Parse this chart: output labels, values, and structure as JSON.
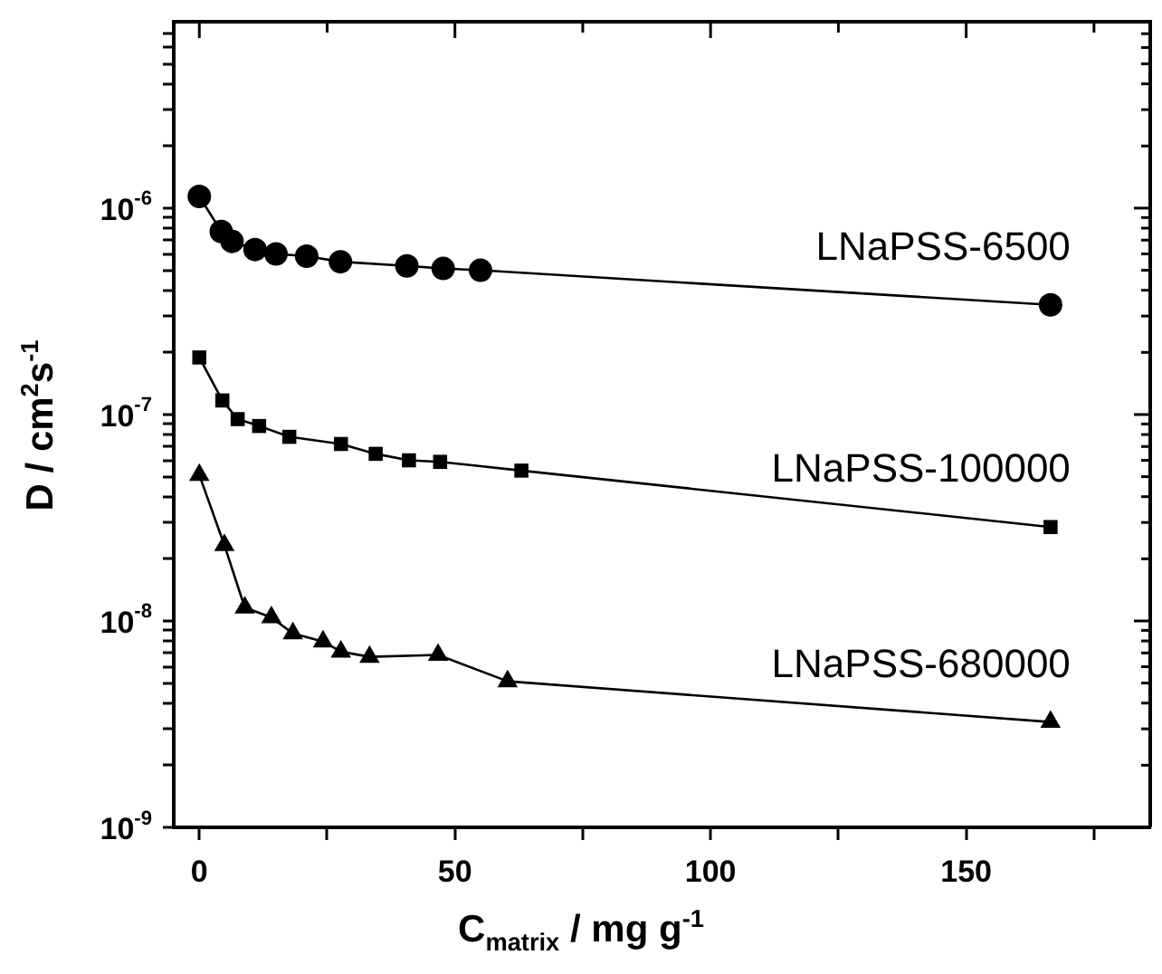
{
  "chart_data": {
    "type": "line",
    "xlabel": "C$_{matrix}$ / mg g$^{-1}$",
    "ylabel": "D / cm$^{2}$s$^{-1}$",
    "log": "y",
    "grid": false,
    "legend": "right",
    "line_style": "solid",
    "xlim": [
      -5,
      186
    ],
    "xticks": [
      0,
      {
        "value": 25,
        "label": null
      },
      50,
      {
        "value": 75,
        "label": null
      },
      100,
      {
        "value": 125,
        "label": null
      },
      150,
      {
        "value": 175,
        "label": null
      }
    ],
    "ylim": [
      1e-09,
      8e-06
    ],
    "yticks": [
      {
        "value": 1e-09,
        "label": "10$^{-9}$"
      },
      {
        "value": 2e-09,
        "label": null
      },
      {
        "value": 3e-09,
        "label": null
      },
      {
        "value": 4e-09,
        "label": null
      },
      {
        "value": 5e-09,
        "label": null
      },
      {
        "value": 6e-09,
        "label": null
      },
      {
        "value": 7e-09,
        "label": null
      },
      {
        "value": 8e-09,
        "label": null
      },
      {
        "value": 9e-09,
        "label": null
      },
      {
        "value": 1e-08,
        "label": "10$^{-8}$"
      },
      {
        "value": 2e-08,
        "label": null
      },
      {
        "value": 3e-08,
        "label": null
      },
      {
        "value": 4e-08,
        "label": null
      },
      {
        "value": 5e-08,
        "label": null
      },
      {
        "value": 6e-08,
        "label": null
      },
      {
        "value": 7e-08,
        "label": null
      },
      {
        "value": 8e-08,
        "label": null
      },
      {
        "value": 9e-08,
        "label": null
      },
      {
        "value": 1e-07,
        "label": "10$^{-7}$"
      },
      {
        "value": 2e-07,
        "label": null
      },
      {
        "value": 3e-07,
        "label": null
      },
      {
        "value": 4e-07,
        "label": null
      },
      {
        "value": 5e-07,
        "label": null
      },
      {
        "value": 6e-07,
        "label": null
      },
      {
        "value": 7e-07,
        "label": null
      },
      {
        "value": 8e-07,
        "label": null
      },
      {
        "value": 9e-07,
        "label": null
      },
      {
        "value": 1e-06,
        "label": "10$^{-6}$"
      },
      {
        "value": 2e-06,
        "label": null
      },
      {
        "value": 3e-06,
        "label": null
      },
      {
        "value": 4e-06,
        "label": null
      },
      {
        "value": 5e-06,
        "label": null
      },
      {
        "value": 6e-06,
        "label": null
      },
      {
        "value": 7e-06,
        "label": null
      }
    ],
    "series": [
      {
        "name": "LNaPSS-6500",
        "color": "#000000",
        "marker": "circle",
        "x": [
          0,
          4.3,
          6.4,
          10.9,
          15,
          21,
          27.6,
          40.6,
          47.7,
          55,
          166.5
        ],
        "values": [
          1.14e-06,
          7.7e-07,
          6.9e-07,
          6.3e-07,
          6e-07,
          5.85e-07,
          5.5e-07,
          5.25e-07,
          5.1e-07,
          5e-07,
          3.4e-07
        ]
      },
      {
        "name": "LNaPSS-100000",
        "color": "#000000",
        "marker": "square",
        "x": [
          0,
          4.5,
          7.5,
          11.7,
          17.6,
          27.7,
          34.5,
          41,
          47.1,
          63,
          166.5
        ],
        "values": [
          1.89e-07,
          1.17e-07,
          9.5e-08,
          8.8e-08,
          7.8e-08,
          7.2e-08,
          6.45e-08,
          6e-08,
          5.9e-08,
          5.35e-08,
          2.85e-08
        ]
      },
      {
        "name": "LNaPSS-680000",
        "color": "#000000",
        "marker": "triangle",
        "x": [
          0,
          4.9,
          8.9,
          14.1,
          18.3,
          24.2,
          27.7,
          33.3,
          46.7,
          60.3,
          166.5
        ],
        "values": [
          5.1e-08,
          2.33e-08,
          1.16e-08,
          1.04e-08,
          8.7e-09,
          7.95e-09,
          7.1e-09,
          6.7e-09,
          6.85e-09,
          5.1e-09,
          3.24e-09
        ]
      }
    ]
  }
}
